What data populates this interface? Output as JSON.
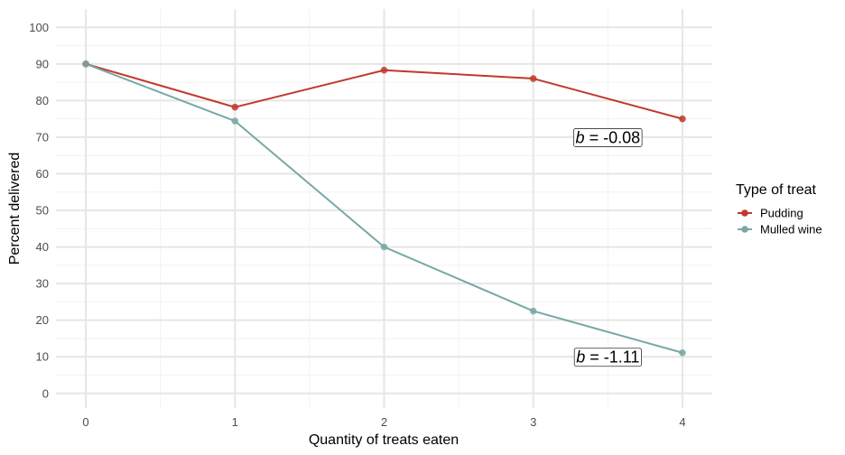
{
  "chart_data": {
    "type": "line",
    "x": [
      0,
      1,
      2,
      3,
      4
    ],
    "xlabel": "Quantity of treats eaten",
    "ylabel": "Percent delivered",
    "xlim": [
      -0.2,
      4.2
    ],
    "ylim": [
      -4,
      105
    ],
    "xticks": [
      0,
      1,
      2,
      3,
      4
    ],
    "yticks": [
      0,
      10,
      20,
      30,
      40,
      50,
      60,
      70,
      80,
      90,
      100
    ],
    "grid": true,
    "legend": {
      "title": "Type of treat",
      "placement": "right"
    },
    "series": [
      {
        "name": "Pudding",
        "color": "#c0392b",
        "values": [
          90,
          78.2,
          88.3,
          86,
          75
        ]
      },
      {
        "name": "Mulled wine",
        "color": "#78a8a5",
        "values": [
          90,
          74.4,
          40,
          22.5,
          11.1
        ]
      }
    ],
    "annotations": [
      {
        "prefix": "b",
        "text": " = -0.08",
        "x": 3.5,
        "y": 70
      },
      {
        "prefix": "b",
        "text": " = -1.11",
        "x": 3.5,
        "y": 10
      }
    ]
  }
}
